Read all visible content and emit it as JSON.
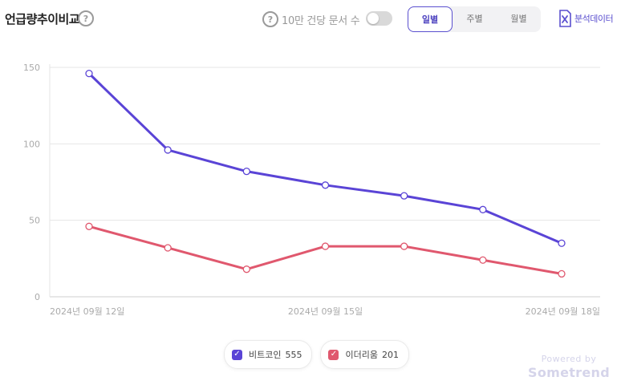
{
  "header": {
    "title": "언급량추이비교",
    "per_label": "10만 건당 문서 수",
    "per_toggle_on": false,
    "periods": [
      "일별",
      "주별",
      "월별"
    ],
    "active_period": 0,
    "export_label": "분석데이터"
  },
  "legend": [
    {
      "label": "비트코인",
      "count": "555",
      "color": "#5a44d6"
    },
    {
      "label": "이더리움",
      "count": "201",
      "color": "#e0586e"
    }
  ],
  "watermark": {
    "top": "Powered by",
    "brand": "Sometrend"
  },
  "chart_data": {
    "type": "line",
    "x": [
      "2024-09-12",
      "2024-09-13",
      "2024-09-14",
      "2024-09-15",
      "2024-09-16",
      "2024-09-17",
      "2024-09-18"
    ],
    "x_tick_labels": [
      {
        "index": 0,
        "label": "2024년 09월 12일"
      },
      {
        "index": 3,
        "label": "2024년 09월 15일"
      },
      {
        "index": 6,
        "label": "2024년 09월 18일"
      }
    ],
    "series": [
      {
        "name": "비트코인",
        "color": "#5a44d6",
        "values": [
          146,
          96,
          82,
          73,
          66,
          57,
          35
        ]
      },
      {
        "name": "이더리움",
        "color": "#e0586e",
        "values": [
          46,
          32,
          18,
          33,
          33,
          24,
          15
        ]
      }
    ],
    "ylim": [
      0,
      150
    ],
    "yticks": [
      0,
      50,
      100,
      150
    ],
    "grid": true,
    "legend_position": "bottom"
  }
}
